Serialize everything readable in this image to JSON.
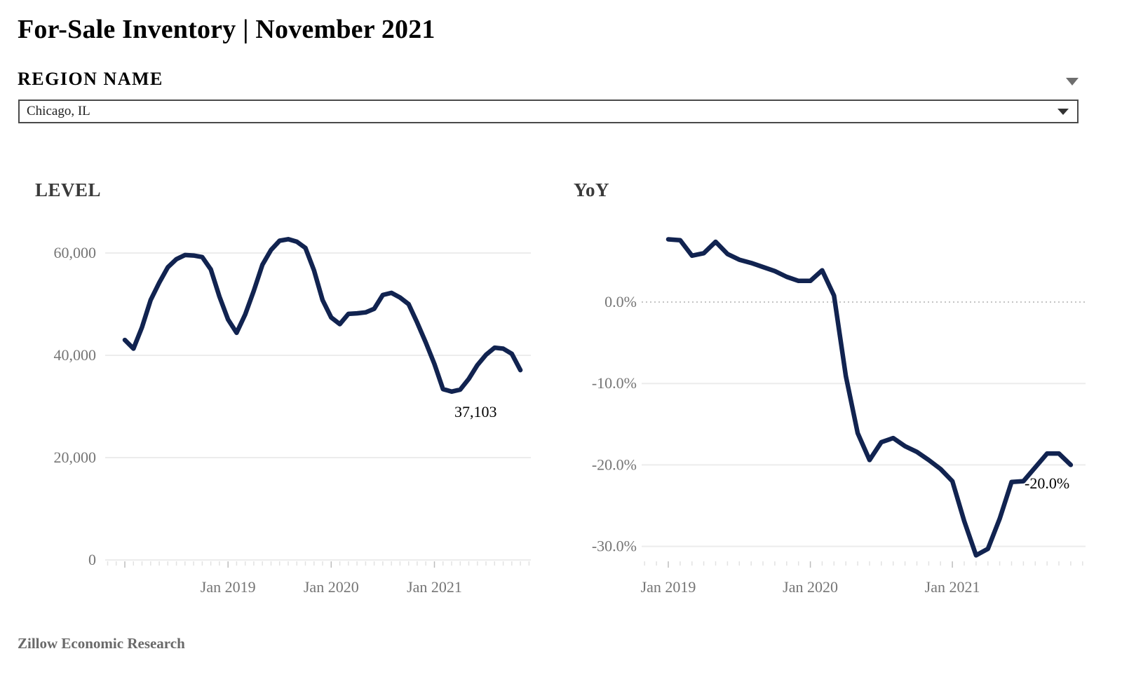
{
  "header": {
    "title": "For-Sale Inventory | November 2021"
  },
  "region_filter": {
    "label": "REGION NAME",
    "selected": "Chicago, IL"
  },
  "footer": {
    "source": "Zillow Economic Research"
  },
  "colors": {
    "line": "#112350",
    "grid": "#ececec",
    "zero_line_dotted": "#c4c4c4",
    "axis_text": "#757575",
    "tick_minor": "#e2e2e2",
    "tick_major": "#bdbdbd",
    "chart_title_text": "#3a3a3a",
    "annotation_text": "#000000"
  },
  "chart_data": [
    {
      "type": "line",
      "title": "LEVEL",
      "frequency": "monthly",
      "xlabel": "",
      "ylabel": "",
      "ylim": [
        0,
        65000
      ],
      "grid": true,
      "legend": false,
      "x_months": [
        "2018-01",
        "2018-02",
        "2018-03",
        "2018-04",
        "2018-05",
        "2018-06",
        "2018-07",
        "2018-08",
        "2018-09",
        "2018-10",
        "2018-11",
        "2018-12",
        "2019-01",
        "2019-02",
        "2019-03",
        "2019-04",
        "2019-05",
        "2019-06",
        "2019-07",
        "2019-08",
        "2019-09",
        "2019-10",
        "2019-11",
        "2019-12",
        "2020-01",
        "2020-02",
        "2020-03",
        "2020-04",
        "2020-05",
        "2020-06",
        "2020-07",
        "2020-08",
        "2020-09",
        "2020-10",
        "2020-11",
        "2020-12",
        "2021-01",
        "2021-02",
        "2021-03",
        "2021-04",
        "2021-05",
        "2021-06",
        "2021-07",
        "2021-08",
        "2021-09",
        "2021-10",
        "2021-11"
      ],
      "values": [
        43000,
        41300,
        45500,
        50800,
        54200,
        57200,
        58800,
        59600,
        59500,
        59200,
        56800,
        51500,
        47000,
        44400,
        48000,
        52600,
        57700,
        60600,
        62400,
        62700,
        62200,
        61000,
        56600,
        50800,
        47400,
        46100,
        48100,
        48200,
        48400,
        49100,
        51800,
        52200,
        51300,
        50000,
        46400,
        42500,
        38300,
        33400,
        32900,
        33300,
        35400,
        38100,
        40100,
        41500,
        41300,
        40300,
        37103
      ],
      "y_ticks": [
        {
          "value": 60000,
          "label": "60,000"
        },
        {
          "value": 40000,
          "label": "40,000"
        },
        {
          "value": 20000,
          "label": "20,000"
        },
        {
          "value": 0,
          "label": "0"
        }
      ],
      "x_ticks": [
        {
          "month": "2019-01",
          "label": "Jan 2019"
        },
        {
          "month": "2020-01",
          "label": "Jan 2020"
        },
        {
          "month": "2021-01",
          "label": "Jan 2021"
        }
      ],
      "annotation": {
        "text": "37,103",
        "month": "2021-11",
        "value": 37103
      }
    },
    {
      "type": "line",
      "title": "YoY",
      "frequency": "monthly",
      "xlabel": "",
      "ylabel": "",
      "ylim": [
        -33,
        10
      ],
      "grid": true,
      "legend": false,
      "x_months": [
        "2019-01",
        "2019-02",
        "2019-03",
        "2019-04",
        "2019-05",
        "2019-06",
        "2019-07",
        "2019-08",
        "2019-09",
        "2019-10",
        "2019-11",
        "2019-12",
        "2020-01",
        "2020-02",
        "2020-03",
        "2020-04",
        "2020-05",
        "2020-06",
        "2020-07",
        "2020-08",
        "2020-09",
        "2020-10",
        "2020-11",
        "2020-12",
        "2021-01",
        "2021-02",
        "2021-03",
        "2021-04",
        "2021-05",
        "2021-06",
        "2021-07",
        "2021-08",
        "2021-09",
        "2021-10",
        "2021-11"
      ],
      "values": [
        7.7,
        7.6,
        5.7,
        6.0,
        7.4,
        5.9,
        5.2,
        4.8,
        4.3,
        3.8,
        3.1,
        2.6,
        2.6,
        3.9,
        0.8,
        -9.1,
        -16.1,
        -19.4,
        -17.2,
        -16.7,
        -17.7,
        -18.4,
        -19.4,
        -20.5,
        -22.0,
        -26.9,
        -31.1,
        -30.3,
        -26.6,
        -22.1,
        -22.0,
        -20.3,
        -18.6,
        -18.6,
        -20.0
      ],
      "y_ticks": [
        {
          "value": 0,
          "label": "0.0%",
          "dotted": true
        },
        {
          "value": -10,
          "label": "-10.0%"
        },
        {
          "value": -20,
          "label": "-20.0%"
        },
        {
          "value": -30,
          "label": "-30.0%"
        }
      ],
      "x_ticks": [
        {
          "month": "2019-01",
          "label": "Jan 2019"
        },
        {
          "month": "2020-01",
          "label": "Jan 2020"
        },
        {
          "month": "2021-01",
          "label": "Jan 2021"
        }
      ],
      "annotation": {
        "text": "-20.0%",
        "month": "2021-11",
        "value": -20.0
      }
    }
  ]
}
